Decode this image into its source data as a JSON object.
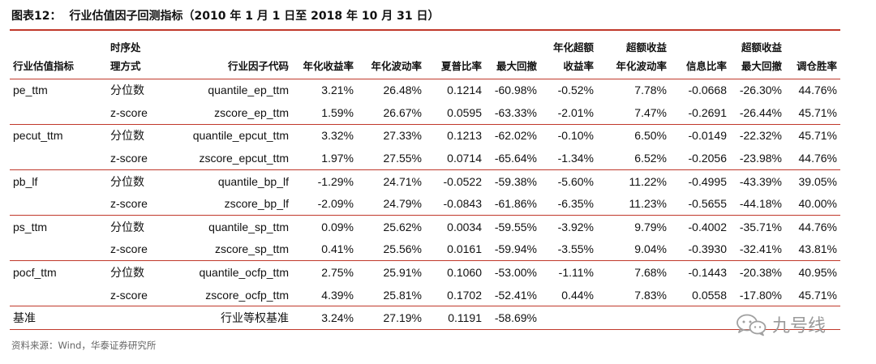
{
  "title": {
    "fig_label": "图表12：",
    "text": "行业估值因子回测指标（2010 年 1 月 1 日至 2018 年 10 月 31 日）"
  },
  "headers": {
    "industry": "行业估值指标",
    "method": [
      "时序处",
      "理方式"
    ],
    "code": "行业因子代码",
    "annual_return": "年化收益率",
    "annual_vol": "年化波动率",
    "sharpe": "夏普比率",
    "max_dd": "最大回撤",
    "excess_return": [
      "年化超额",
      "收益率"
    ],
    "excess_vol": [
      "超额收益",
      "年化波动率"
    ],
    "info_ratio": "信息比率",
    "excess_max_dd": [
      "超额收益",
      "最大回撤"
    ],
    "win_rate": "调仓胜率"
  },
  "rows": [
    {
      "industry": "pe_ttm",
      "method": "分位数",
      "code": "quantile_ep_ttm",
      "annual_return": "3.21%",
      "annual_vol": "26.48%",
      "sharpe": "0.1214",
      "max_dd": "-60.98%",
      "excess_return": "-0.52%",
      "excess_vol": "7.78%",
      "info_ratio": "-0.0668",
      "excess_max_dd": "-26.30%",
      "win_rate": "44.76%"
    },
    {
      "industry": "",
      "method": "z-score",
      "code": "zscore_ep_ttm",
      "annual_return": "1.59%",
      "annual_vol": "26.67%",
      "sharpe": "0.0595",
      "max_dd": "-63.33%",
      "excess_return": "-2.01%",
      "excess_vol": "7.47%",
      "info_ratio": "-0.2691",
      "excess_max_dd": "-26.44%",
      "win_rate": "45.71%"
    },
    {
      "industry": "pecut_ttm",
      "method": "分位数",
      "code": "quantile_epcut_ttm",
      "annual_return": "3.32%",
      "annual_vol": "27.33%",
      "sharpe": "0.1213",
      "max_dd": "-62.02%",
      "excess_return": "-0.10%",
      "excess_vol": "6.50%",
      "info_ratio": "-0.0149",
      "excess_max_dd": "-22.32%",
      "win_rate": "45.71%"
    },
    {
      "industry": "",
      "method": "z-score",
      "code": "zscore_epcut_ttm",
      "annual_return": "1.97%",
      "annual_vol": "27.55%",
      "sharpe": "0.0714",
      "max_dd": "-65.64%",
      "excess_return": "-1.34%",
      "excess_vol": "6.52%",
      "info_ratio": "-0.2056",
      "excess_max_dd": "-23.98%",
      "win_rate": "44.76%"
    },
    {
      "industry": "pb_lf",
      "method": "分位数",
      "code": "quantile_bp_lf",
      "annual_return": "-1.29%",
      "annual_vol": "24.71%",
      "sharpe": "-0.0522",
      "max_dd": "-59.38%",
      "excess_return": "-5.60%",
      "excess_vol": "11.22%",
      "info_ratio": "-0.4995",
      "excess_max_dd": "-43.39%",
      "win_rate": "39.05%"
    },
    {
      "industry": "",
      "method": "z-score",
      "code": "zscore_bp_lf",
      "annual_return": "-2.09%",
      "annual_vol": "24.79%",
      "sharpe": "-0.0843",
      "max_dd": "-61.86%",
      "excess_return": "-6.35%",
      "excess_vol": "11.23%",
      "info_ratio": "-0.5655",
      "excess_max_dd": "-44.18%",
      "win_rate": "40.00%"
    },
    {
      "industry": "ps_ttm",
      "method": "分位数",
      "code": "quantile_sp_ttm",
      "annual_return": "0.09%",
      "annual_vol": "25.62%",
      "sharpe": "0.0034",
      "max_dd": "-59.55%",
      "excess_return": "-3.92%",
      "excess_vol": "9.79%",
      "info_ratio": "-0.4002",
      "excess_max_dd": "-35.71%",
      "win_rate": "44.76%"
    },
    {
      "industry": "",
      "method": "z-score",
      "code": "zscore_sp_ttm",
      "annual_return": "0.41%",
      "annual_vol": "25.56%",
      "sharpe": "0.0161",
      "max_dd": "-59.94%",
      "excess_return": "-3.55%",
      "excess_vol": "9.04%",
      "info_ratio": "-0.3930",
      "excess_max_dd": "-32.41%",
      "win_rate": "43.81%"
    },
    {
      "industry": "pocf_ttm",
      "method": "分位数",
      "code": "quantile_ocfp_ttm",
      "annual_return": "2.75%",
      "annual_vol": "25.91%",
      "sharpe": "0.1060",
      "max_dd": "-53.00%",
      "excess_return": "-1.11%",
      "excess_vol": "7.68%",
      "info_ratio": "-0.1443",
      "excess_max_dd": "-20.38%",
      "win_rate": "40.95%"
    },
    {
      "industry": "",
      "method": "z-score",
      "code": "zscore_ocfp_ttm",
      "annual_return": "4.39%",
      "annual_vol": "25.81%",
      "sharpe": "0.1702",
      "max_dd": "-52.41%",
      "excess_return": "0.44%",
      "excess_vol": "7.83%",
      "info_ratio": "0.0558",
      "excess_max_dd": "-17.80%",
      "win_rate": "45.71%"
    }
  ],
  "benchmark": {
    "name": "基准",
    "code": "行业等权基准",
    "annual_return": "3.24%",
    "annual_vol": "27.19%",
    "sharpe": "0.1191",
    "max_dd": "-58.69%"
  },
  "source": "资料来源：Wind，华泰证券研究所",
  "watermark": {
    "text": "九号线",
    "icon": "wechat-icon"
  },
  "colors": {
    "rule": "#c0392b",
    "source_text": "#666666",
    "watermark": "#9a9a9a"
  }
}
